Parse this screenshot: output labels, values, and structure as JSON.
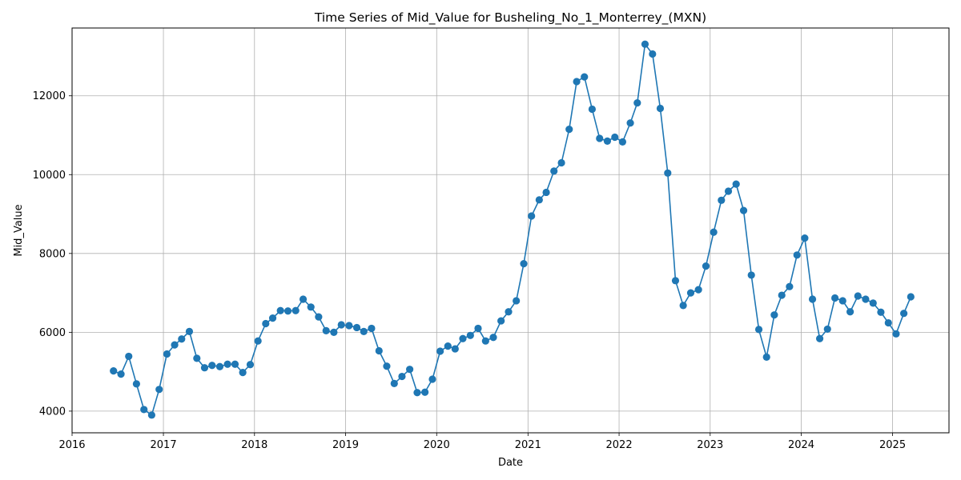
{
  "chart_data": {
    "type": "line",
    "title": "Time Series of Mid_Value for Busheling_No_1_Monterrey_(MXN)",
    "xlabel": "Date",
    "ylabel": "Mid_Value",
    "xlim": [
      "2016-01-01",
      "2025-08-15"
    ],
    "ylim": [
      3450,
      13720
    ],
    "x_ticks": [
      "2016",
      "2017",
      "2018",
      "2019",
      "2020",
      "2021",
      "2022",
      "2023",
      "2024",
      "2025"
    ],
    "y_ticks": [
      4000,
      6000,
      8000,
      10000,
      12000
    ],
    "grid": true,
    "marker": "circle",
    "colors": {
      "series": "#1f77b4",
      "grid": "#b0b0b0",
      "axis": "#000000"
    },
    "series": [
      {
        "x": [
          "2016-06",
          "2016-07",
          "2016-08",
          "2016-09",
          "2016-10",
          "2016-11",
          "2016-12",
          "2017-01",
          "2017-02",
          "2017-03",
          "2017-04",
          "2017-05",
          "2017-06",
          "2017-07",
          "2017-08",
          "2017-09",
          "2017-10",
          "2017-11",
          "2017-12",
          "2018-01",
          "2018-02",
          "2018-03",
          "2018-04",
          "2018-05",
          "2018-06",
          "2018-07",
          "2018-08",
          "2018-09",
          "2018-10",
          "2018-11",
          "2018-12",
          "2019-01",
          "2019-02",
          "2019-03",
          "2019-04",
          "2019-05",
          "2019-06",
          "2019-07",
          "2019-08",
          "2019-09",
          "2019-10",
          "2019-11",
          "2019-12",
          "2020-01",
          "2020-02",
          "2020-03",
          "2020-04",
          "2020-05",
          "2020-06",
          "2020-07",
          "2020-08",
          "2020-09",
          "2020-10",
          "2020-11",
          "2020-12",
          "2021-01",
          "2021-02",
          "2021-03",
          "2021-04",
          "2021-05",
          "2021-06",
          "2021-07",
          "2021-08",
          "2021-09",
          "2021-10",
          "2021-11",
          "2021-12",
          "2022-01",
          "2022-02",
          "2022-03",
          "2022-04",
          "2022-05",
          "2022-06",
          "2022-07",
          "2022-08",
          "2022-09",
          "2022-10",
          "2022-11",
          "2022-12",
          "2023-01",
          "2023-02",
          "2023-03",
          "2023-04",
          "2023-05",
          "2023-06",
          "2023-07",
          "2023-08",
          "2023-09",
          "2023-10",
          "2023-11",
          "2023-12",
          "2024-01",
          "2024-02",
          "2024-03",
          "2024-04",
          "2024-05",
          "2024-06",
          "2024-07",
          "2024-08",
          "2024-09",
          "2024-10",
          "2024-11",
          "2024-12",
          "2025-01",
          "2025-02",
          "2025-03"
        ],
        "values": [
          5020,
          4940,
          5390,
          4690,
          4040,
          3900,
          4550,
          5450,
          5680,
          5830,
          6020,
          5340,
          5100,
          5160,
          5130,
          5190,
          5190,
          4980,
          5180,
          5780,
          6220,
          6360,
          6550,
          6540,
          6550,
          6840,
          6640,
          6390,
          6040,
          6000,
          6190,
          6170,
          6120,
          6020,
          6100,
          5530,
          5140,
          4700,
          4880,
          5060,
          4470,
          4480,
          4810,
          5520,
          5650,
          5580,
          5840,
          5920,
          6100,
          5780,
          5870,
          6290,
          6520,
          6800,
          7740,
          8950,
          9360,
          9550,
          10090,
          10300,
          11150,
          12360,
          12480,
          11660,
          10920,
          10850,
          10950,
          10830,
          11310,
          11820,
          13310,
          13060,
          11680,
          10040,
          7310,
          6680,
          7000,
          7080,
          7680,
          8540,
          9350,
          9580,
          9760,
          9090,
          7450,
          6070,
          5370,
          6440,
          6940,
          7160,
          7960,
          8390,
          6840,
          5840,
          6080,
          6870,
          6800,
          6520,
          6920,
          6840,
          6740,
          6510,
          6240,
          5960,
          6480,
          6900
        ]
      }
    ]
  }
}
